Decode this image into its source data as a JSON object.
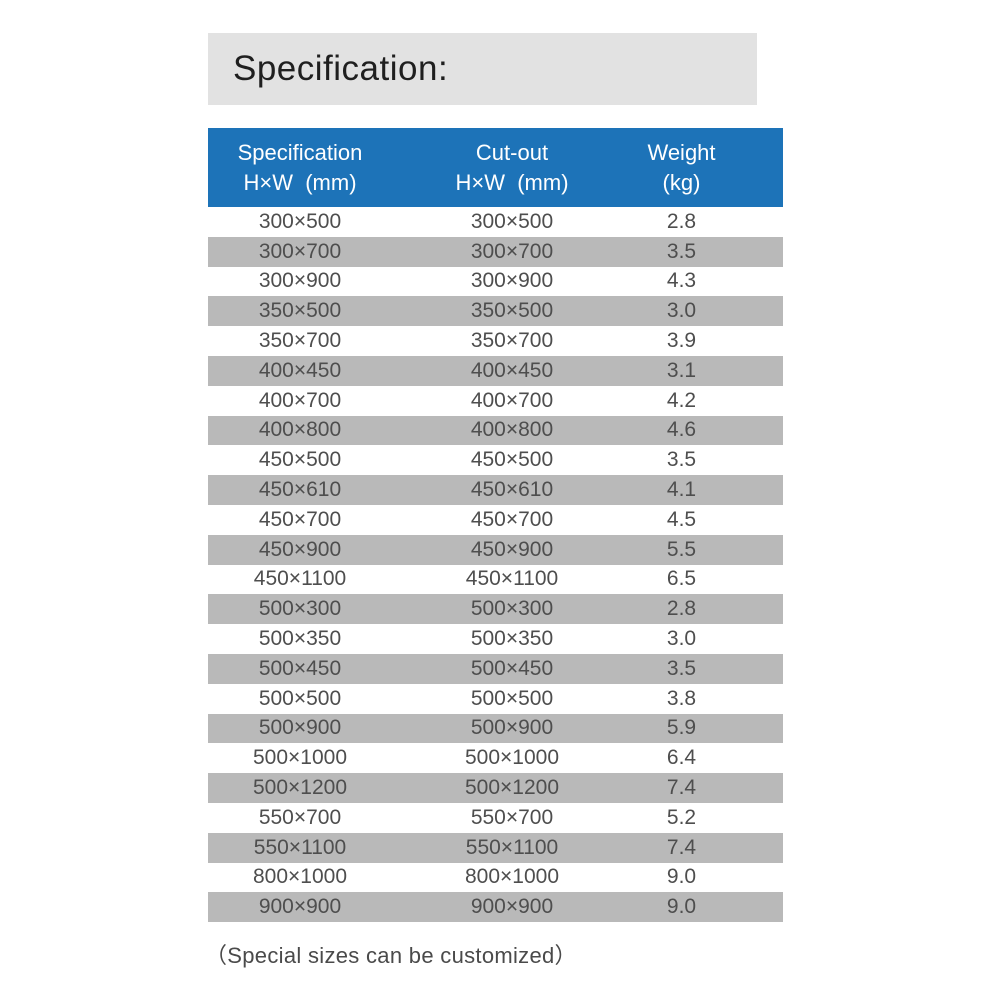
{
  "page": {
    "title": "Specification:",
    "footnote": "（Special sizes can be customized）"
  },
  "colors": {
    "header_bg": "#1d73b8",
    "row_alt_bg": "#b9b9b9",
    "title_bg": "#e2e2e2"
  },
  "table": {
    "columns": [
      {
        "label": "Specification",
        "sub": "H×W  (mm)"
      },
      {
        "label": "Cut-out",
        "sub": "H×W  (mm)"
      },
      {
        "label": "Weight",
        "sub": "(kg)"
      }
    ],
    "rows": [
      {
        "spec": "300×500",
        "cutout": "300×500",
        "weight": "2.8"
      },
      {
        "spec": "300×700",
        "cutout": "300×700",
        "weight": "3.5"
      },
      {
        "spec": "300×900",
        "cutout": "300×900",
        "weight": "4.3"
      },
      {
        "spec": "350×500",
        "cutout": "350×500",
        "weight": "3.0"
      },
      {
        "spec": "350×700",
        "cutout": "350×700",
        "weight": "3.9"
      },
      {
        "spec": "400×450",
        "cutout": "400×450",
        "weight": "3.1"
      },
      {
        "spec": "400×700",
        "cutout": "400×700",
        "weight": "4.2"
      },
      {
        "spec": "400×800",
        "cutout": "400×800",
        "weight": "4.6"
      },
      {
        "spec": "450×500",
        "cutout": "450×500",
        "weight": "3.5"
      },
      {
        "spec": "450×610",
        "cutout": "450×610",
        "weight": "4.1"
      },
      {
        "spec": "450×700",
        "cutout": "450×700",
        "weight": "4.5"
      },
      {
        "spec": "450×900",
        "cutout": "450×900",
        "weight": "5.5"
      },
      {
        "spec": "450×1100",
        "cutout": "450×1100",
        "weight": "6.5"
      },
      {
        "spec": "500×300",
        "cutout": "500×300",
        "weight": "2.8"
      },
      {
        "spec": "500×350",
        "cutout": "500×350",
        "weight": "3.0"
      },
      {
        "spec": "500×450",
        "cutout": "500×450",
        "weight": "3.5"
      },
      {
        "spec": "500×500",
        "cutout": "500×500",
        "weight": "3.8"
      },
      {
        "spec": "500×900",
        "cutout": "500×900",
        "weight": "5.9"
      },
      {
        "spec": "500×1000",
        "cutout": "500×1000",
        "weight": "6.4"
      },
      {
        "spec": "500×1200",
        "cutout": "500×1200",
        "weight": "7.4"
      },
      {
        "spec": "550×700",
        "cutout": "550×700",
        "weight": "5.2"
      },
      {
        "spec": "550×1100",
        "cutout": "550×1100",
        "weight": "7.4"
      },
      {
        "spec": "800×1000",
        "cutout": "800×1000",
        "weight": "9.0"
      },
      {
        "spec": "900×900",
        "cutout": "900×900",
        "weight": "9.0"
      }
    ]
  }
}
